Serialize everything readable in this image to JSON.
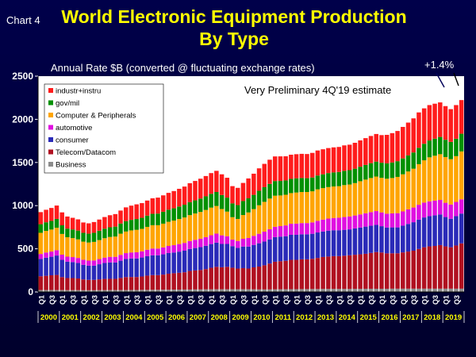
{
  "header": {
    "chart_tag": "Chart 4",
    "title_line1": "World Electronic Equipment Production",
    "title_line2": "By Type"
  },
  "chart_data": {
    "type": "bar",
    "stacked": true,
    "subtitle": "Annual Rate $B (converted @ fluctuating exchange rates)",
    "annotation": "Very Preliminary 4Q'19 estimate",
    "callout": "+1.4%",
    "ylim": [
      0,
      2500
    ],
    "yticks": [
      0,
      500,
      1000,
      1500,
      2000,
      2500
    ],
    "quarter_labels": [
      "Q1",
      "Q3"
    ],
    "years": [
      "2000",
      "2001",
      "2002",
      "2003",
      "2004",
      "2005",
      "2006",
      "2007",
      "2008",
      "2009",
      "2010",
      "2011",
      "2012",
      "2013",
      "2014",
      "2015",
      "2016",
      "2017",
      "2018",
      "2019"
    ],
    "legend_position": "top-left",
    "grid": false,
    "series": [
      {
        "name": "Business",
        "color": "#8c8c8c",
        "values": [
          22,
          22,
          23,
          22,
          22,
          21,
          21,
          21,
          20,
          20,
          20,
          21,
          21,
          22,
          22,
          22,
          22,
          23,
          23,
          24,
          24,
          25,
          25,
          26,
          26,
          27,
          27,
          28,
          28,
          29,
          29,
          30,
          30,
          31,
          31,
          31,
          31,
          31,
          31,
          31,
          30,
          29,
          29,
          29,
          30,
          31,
          31,
          32,
          32,
          33,
          33,
          34,
          34,
          35,
          35,
          35,
          35,
          35,
          35,
          36,
          36,
          37,
          37,
          37,
          37,
          37,
          38,
          38,
          38,
          38,
          38,
          38,
          38,
          38,
          38,
          38,
          38,
          38,
          38,
          38
        ]
      },
      {
        "name": "Telecom/Datacom",
        "color": "#b01020",
        "values": [
          160,
          165,
          170,
          175,
          150,
          140,
          140,
          135,
          125,
          120,
          120,
          125,
          130,
          130,
          130,
          140,
          150,
          150,
          150,
          155,
          165,
          170,
          170,
          175,
          185,
          190,
          195,
          200,
          215,
          220,
          225,
          235,
          250,
          260,
          255,
          260,
          250,
          240,
          245,
          240,
          255,
          265,
          280,
          300,
          320,
          325,
          330,
          340,
          340,
          345,
          345,
          350,
          360,
          370,
          375,
          380,
          380,
          385,
          390,
          395,
          400,
          405,
          415,
          425,
          420,
          410,
          410,
          410,
          420,
          430,
          440,
          460,
          480,
          490,
          495,
          505,
          490,
          480,
          500,
          525
        ]
      },
      {
        "name": "consumer",
        "color": "#2a2ab8",
        "values": [
          200,
          210,
          215,
          225,
          200,
          190,
          185,
          180,
          170,
          165,
          165,
          175,
          185,
          190,
          190,
          200,
          210,
          215,
          215,
          220,
          225,
          230,
          230,
          235,
          240,
          240,
          245,
          250,
          255,
          260,
          265,
          270,
          275,
          280,
          270,
          265,
          250,
          240,
          250,
          255,
          260,
          270,
          275,
          280,
          285,
          285,
          285,
          290,
          290,
          290,
          290,
          290,
          295,
          295,
          300,
          300,
          300,
          300,
          300,
          305,
          310,
          315,
          315,
          315,
          305,
          300,
          300,
          300,
          310,
          320,
          330,
          340,
          345,
          350,
          355,
          355,
          340,
          330,
          340,
          345
        ]
      },
      {
        "name": "automotive",
        "color": "#e010e0",
        "values": [
          58,
          60,
          60,
          62,
          60,
          58,
          58,
          58,
          58,
          58,
          60,
          60,
          62,
          65,
          65,
          68,
          68,
          70,
          72,
          72,
          75,
          78,
          78,
          80,
          82,
          85,
          88,
          90,
          92,
          95,
          98,
          100,
          102,
          105,
          100,
          90,
          75,
          80,
          90,
          100,
          105,
          110,
          115,
          118,
          120,
          122,
          125,
          128,
          130,
          130,
          130,
          132,
          135,
          138,
          140,
          142,
          145,
          148,
          150,
          150,
          152,
          155,
          158,
          160,
          160,
          160,
          162,
          165,
          165,
          168,
          170,
          172,
          172,
          172,
          170,
          168,
          165,
          165,
          165,
          165
        ]
      },
      {
        "name": "Computer & Peripherals",
        "color": "#ffa500",
        "values": [
          245,
          250,
          255,
          260,
          240,
          225,
          220,
          215,
          210,
          210,
          215,
          220,
          225,
          230,
          235,
          245,
          250,
          255,
          260,
          260,
          265,
          270,
          270,
          275,
          280,
          285,
          290,
          295,
          300,
          305,
          310,
          315,
          320,
          320,
          305,
          285,
          260,
          255,
          275,
          295,
          310,
          330,
          345,
          355,
          360,
          355,
          355,
          355,
          360,
          360,
          360,
          360,
          365,
          365,
          365,
          365,
          365,
          370,
          370,
          375,
          385,
          390,
          395,
          400,
          400,
          405,
          410,
          420,
          430,
          440,
          450,
          470,
          490,
          510,
          520,
          530,
          530,
          525,
          530,
          555
        ]
      },
      {
        "name": "gov/mil",
        "color": "#009000",
        "values": [
          100,
          100,
          100,
          102,
          100,
          100,
          100,
          102,
          102,
          102,
          105,
          108,
          110,
          112,
          115,
          118,
          120,
          122,
          125,
          128,
          130,
          132,
          135,
          138,
          140,
          142,
          145,
          148,
          150,
          152,
          155,
          158,
          160,
          162,
          162,
          162,
          160,
          160,
          162,
          164,
          165,
          168,
          170,
          170,
          170,
          168,
          166,
          165,
          164,
          162,
          160,
          160,
          160,
          160,
          162,
          163,
          165,
          165,
          166,
          167,
          168,
          170,
          172,
          173,
          175,
          178,
          180,
          182,
          184,
          186,
          188,
          190,
          192,
          195,
          198,
          200,
          200,
          200,
          202,
          205
        ]
      },
      {
        "name": "industr+instru",
        "color": "#ff1c1c",
        "values": [
          140,
          145,
          150,
          155,
          150,
          140,
          135,
          130,
          120,
          120,
          125,
          130,
          135,
          140,
          145,
          150,
          160,
          165,
          170,
          170,
          175,
          180,
          185,
          190,
          195,
          200,
          205,
          210,
          220,
          225,
          230,
          235,
          240,
          245,
          240,
          230,
          200,
          200,
          210,
          230,
          245,
          260,
          270,
          280,
          285,
          285,
          280,
          280,
          280,
          280,
          280,
          285,
          290,
          290,
          290,
          290,
          290,
          295,
          295,
          300,
          305,
          310,
          315,
          320,
          320,
          330,
          340,
          350,
          365,
          380,
          395,
          410,
          410,
          410,
          405,
          400,
          390,
          380,
          390,
          390
        ]
      }
    ]
  }
}
